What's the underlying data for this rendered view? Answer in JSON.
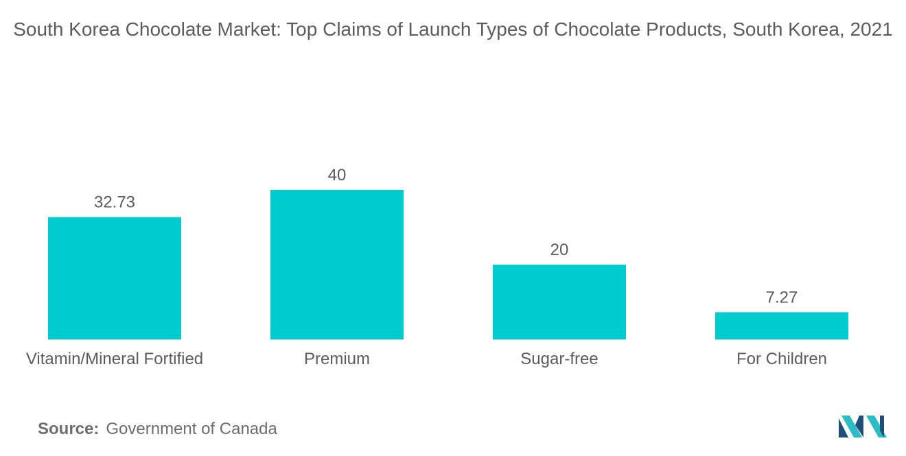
{
  "title": "South Korea Chocolate Market: Top Claims of Launch Types of Chocolate Products, South Korea, 2021",
  "source": {
    "label": "Source:",
    "text": "Government of Canada"
  },
  "colors": {
    "bar": "#00cccf",
    "text": "#5c5c5c",
    "logo_dark": "#1f4e79",
    "logo_light": "#2bbcc6"
  },
  "icons": {
    "logo": "mordor-intelligence-logo-icon"
  },
  "chart_data": {
    "type": "bar",
    "categories": [
      "Vitamin/Mineral Fortified",
      "Premium",
      "Sugar-free",
      "For Children"
    ],
    "values": [
      32.73,
      40,
      20,
      7.27
    ],
    "value_labels": [
      "32.73",
      "40",
      "20",
      "7.27"
    ],
    "title": "South Korea Chocolate Market: Top Claims of Launch Types of Chocolate Products, South Korea, 2021",
    "xlabel": "",
    "ylabel": "",
    "ylim": [
      0,
      40
    ],
    "grid": false,
    "legend": "none"
  }
}
